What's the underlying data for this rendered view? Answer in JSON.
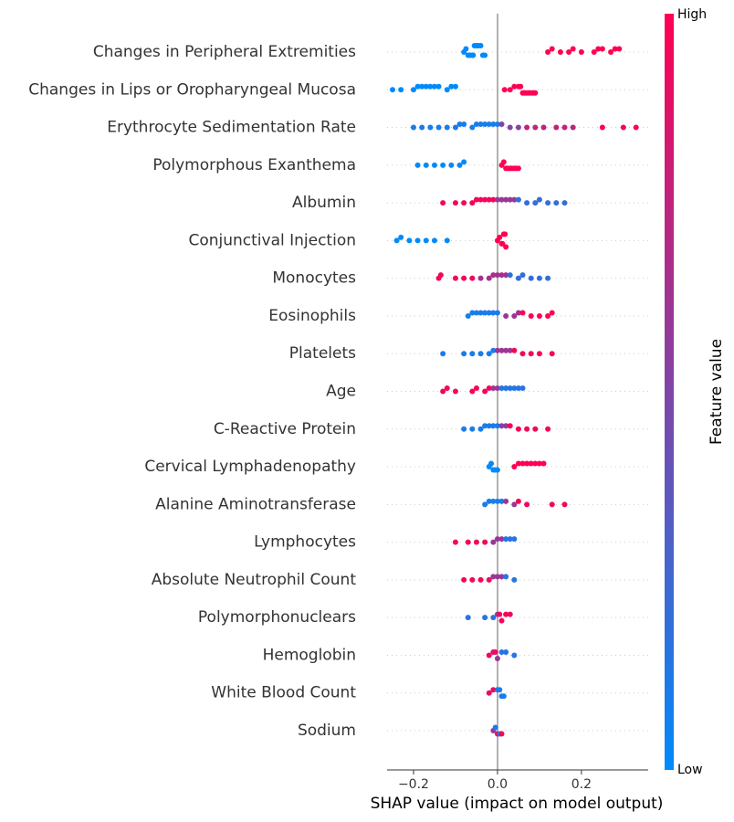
{
  "chart_data": {
    "type": "beeswarm",
    "xlabel": "SHAP value (impact on model output)",
    "colorbar_label": "Feature value",
    "colorbar_high": "High",
    "colorbar_low": "Low",
    "colormap": [
      "#008afb",
      "#ff0052"
    ],
    "xlim": [
      -0.263,
      0.359
    ],
    "xticks": [
      {
        "value": -0.2,
        "label": "−0.2"
      },
      {
        "value": 0,
        "label": "0.0"
      },
      {
        "value": 0.2,
        "label": "0.2"
      }
    ],
    "categories": [
      "Changes in Peripheral Extremities",
      "Changes in Lips or Oropharyngeal Mucosa",
      "Erythrocyte Sedimentation Rate",
      "Polymorphous Exanthema",
      "Albumin",
      "Conjunctival Injection",
      "Monocytes",
      "Eosinophils",
      "Platelets",
      "Age",
      "C-Reactive Protein",
      "Cervical Lymphadenopathy",
      "Alanine Aminotransferase",
      "Lymphocytes",
      "Absolute Neutrophil Count",
      "Polymorphonuclears",
      "Hemoglobin",
      "White Blood Count",
      "Sodium"
    ],
    "values": [
      [
        -0.08,
        -0.075,
        -0.07,
        -0.065,
        -0.06,
        -0.058,
        -0.055,
        -0.05,
        -0.048,
        -0.045,
        -0.04,
        -0.035,
        -0.03,
        0.12,
        0.13,
        0.15,
        0.17,
        0.18,
        0.2,
        0.23,
        0.24,
        0.25,
        0.27,
        0.28,
        0.29
      ],
      [
        -0.25,
        -0.23,
        -0.2,
        -0.19,
        -0.18,
        -0.17,
        -0.16,
        -0.15,
        -0.14,
        -0.12,
        -0.11,
        -0.1,
        0.017,
        0.03,
        0.04,
        0.05,
        0.055,
        0.06,
        0.065,
        0.07,
        0.075,
        0.08,
        0.085,
        0.09
      ],
      [
        -0.2,
        -0.18,
        -0.16,
        -0.14,
        -0.12,
        -0.1,
        -0.09,
        -0.08,
        -0.06,
        -0.05,
        -0.04,
        -0.03,
        -0.02,
        -0.01,
        0.0,
        0.01,
        0.03,
        0.05,
        0.07,
        0.09,
        0.11,
        0.14,
        0.16,
        0.18,
        0.25,
        0.3,
        0.33
      ],
      [
        -0.19,
        -0.17,
        -0.15,
        -0.13,
        -0.11,
        -0.09,
        -0.08,
        0.01,
        0.015,
        0.02,
        0.025,
        0.03,
        0.035,
        0.04,
        0.045,
        0.05
      ],
      [
        -0.13,
        -0.1,
        -0.08,
        -0.06,
        -0.05,
        -0.04,
        -0.03,
        -0.02,
        -0.01,
        0.0,
        0.01,
        0.02,
        0.03,
        0.04,
        0.05,
        0.07,
        0.09,
        0.1,
        0.12,
        0.14,
        0.16
      ],
      [
        -0.24,
        -0.23,
        -0.21,
        -0.19,
        -0.17,
        -0.15,
        -0.12,
        0.0,
        0.005,
        0.01,
        0.012,
        0.015,
        0.018,
        0.02
      ],
      [
        -0.14,
        -0.135,
        -0.1,
        -0.08,
        -0.06,
        -0.04,
        -0.02,
        -0.01,
        0.0,
        0.01,
        0.02,
        0.03,
        0.05,
        0.06,
        0.08,
        0.1,
        0.12
      ],
      [
        -0.07,
        -0.06,
        -0.05,
        -0.04,
        -0.03,
        -0.02,
        -0.01,
        0.0,
        0.02,
        0.04,
        0.05,
        0.06,
        0.08,
        0.1,
        0.12,
        0.13
      ],
      [
        -0.13,
        -0.08,
        -0.06,
        -0.04,
        -0.02,
        -0.01,
        0.0,
        0.01,
        0.02,
        0.03,
        0.04,
        0.06,
        0.08,
        0.1,
        0.13
      ],
      [
        -0.13,
        -0.12,
        -0.1,
        -0.06,
        -0.05,
        -0.03,
        -0.02,
        -0.01,
        0.0,
        0.01,
        0.02,
        0.03,
        0.04,
        0.05,
        0.06
      ],
      [
        -0.08,
        -0.06,
        -0.04,
        -0.03,
        -0.02,
        -0.01,
        0.0,
        0.01,
        0.02,
        0.03,
        0.05,
        0.07,
        0.09,
        0.12
      ],
      [
        -0.02,
        -0.015,
        -0.01,
        -0.005,
        0.0,
        0.04,
        0.05,
        0.06,
        0.07,
        0.08,
        0.09,
        0.1,
        0.11
      ],
      [
        -0.03,
        -0.02,
        -0.01,
        0.0,
        0.01,
        0.02,
        0.04,
        0.05,
        0.07,
        0.13,
        0.16
      ],
      [
        -0.1,
        -0.07,
        -0.05,
        -0.03,
        -0.01,
        0.0,
        0.01,
        0.02,
        0.03,
        0.04
      ],
      [
        -0.08,
        -0.06,
        -0.04,
        -0.02,
        -0.01,
        0.0,
        0.01,
        0.02,
        0.04
      ],
      [
        -0.07,
        -0.03,
        -0.01,
        0.0,
        0.005,
        0.01,
        0.02,
        0.03
      ],
      [
        -0.02,
        -0.01,
        -0.005,
        0.0,
        0.01,
        0.02,
        0.04
      ],
      [
        -0.02,
        -0.01,
        0.0,
        0.005,
        0.01,
        0.015
      ],
      [
        -0.01,
        -0.005,
        0.0,
        0.005,
        0.01
      ]
    ],
    "feature_values": [
      [
        0,
        0,
        0,
        0,
        0,
        0,
        0,
        0,
        0,
        0,
        0,
        0,
        0,
        1,
        1,
        1,
        1,
        1,
        1,
        1,
        1,
        1,
        1,
        1,
        1
      ],
      [
        0,
        0,
        0,
        0,
        0,
        0,
        0,
        0,
        0,
        0,
        0,
        0,
        1,
        1,
        1,
        1,
        1,
        1,
        1,
        1,
        1,
        1,
        1,
        1
      ],
      [
        0.1,
        0.1,
        0.1,
        0.1,
        0.1,
        0.1,
        0.1,
        0.1,
        0.1,
        0.1,
        0.1,
        0.1,
        0.1,
        0.1,
        0.1,
        0.5,
        0.5,
        0.5,
        0.75,
        0.75,
        0.75,
        0.75,
        0.75,
        0.75,
        1,
        1,
        1
      ],
      [
        0,
        0,
        0,
        0,
        0,
        0,
        0,
        1,
        1,
        1,
        1,
        1,
        1,
        1,
        1,
        1
      ],
      [
        0.95,
        0.95,
        0.95,
        0.95,
        0.95,
        0.95,
        0.95,
        0.95,
        0.95,
        0.6,
        0.6,
        0.6,
        0.6,
        0.6,
        0.2,
        0.2,
        0.2,
        0.2,
        0.2,
        0.2,
        0.2
      ],
      [
        0,
        0,
        0,
        0,
        0,
        0,
        0,
        1,
        1,
        1,
        1,
        1,
        1,
        1
      ],
      [
        0.95,
        0.95,
        0.95,
        0.95,
        0.95,
        0.65,
        0.65,
        0.65,
        0.65,
        0.65,
        0.65,
        0.2,
        0.2,
        0.2,
        0.2,
        0.2,
        0.2
      ],
      [
        0.1,
        0.1,
        0.1,
        0.1,
        0.1,
        0.1,
        0.1,
        0.1,
        0.6,
        0.6,
        0.6,
        1,
        1,
        1,
        1,
        1
      ],
      [
        0.1,
        0.1,
        0.1,
        0.1,
        0.1,
        0.1,
        0.6,
        0.6,
        0.6,
        0.6,
        0.95,
        0.95,
        0.95,
        0.95,
        0.95
      ],
      [
        0.95,
        0.95,
        0.95,
        0.95,
        0.95,
        0.95,
        0.95,
        0.6,
        0.6,
        0.15,
        0.15,
        0.15,
        0.15,
        0.15,
        0.15
      ],
      [
        0.1,
        0.1,
        0.1,
        0.1,
        0.1,
        0.1,
        0.1,
        0.55,
        0.55,
        0.95,
        0.95,
        0.95,
        0.95,
        0.95
      ],
      [
        0,
        0,
        0,
        0,
        0,
        1,
        1,
        1,
        1,
        1,
        1,
        1,
        1
      ],
      [
        0.1,
        0.1,
        0.1,
        0.1,
        0.1,
        0.6,
        0.6,
        0.95,
        0.95,
        0.95,
        0.95
      ],
      [
        0.95,
        0.95,
        0.95,
        0.95,
        0.6,
        0.6,
        0.6,
        0.15,
        0.15,
        0.15
      ],
      [
        0.95,
        0.95,
        0.95,
        0.95,
        0.6,
        0.6,
        0.6,
        0.15,
        0.15
      ],
      [
        0.15,
        0.15,
        0.15,
        0.6,
        0.95,
        0.95,
        0.95,
        0.95
      ],
      [
        0.9,
        0.9,
        0.9,
        0.6,
        0.15,
        0.15,
        0.15
      ],
      [
        0.9,
        0.9,
        0.1,
        0.1,
        0.1,
        0.1
      ],
      [
        0.6,
        0.1,
        0.95,
        0.1,
        0.95
      ]
    ]
  }
}
